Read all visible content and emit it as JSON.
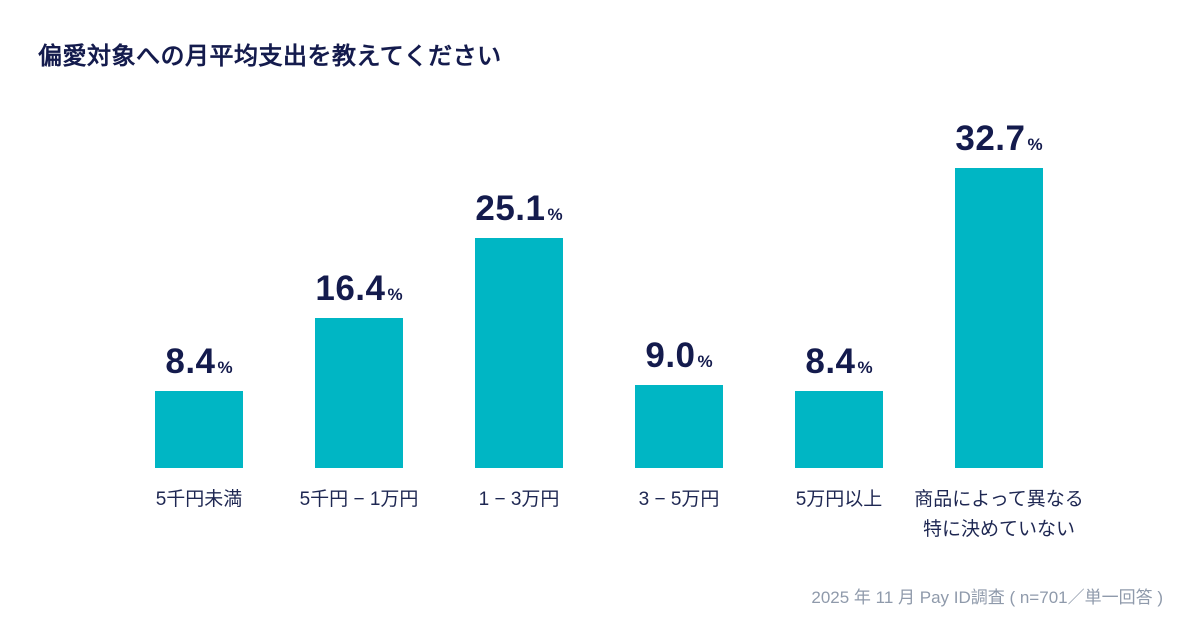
{
  "page": {
    "title": "偏愛対象への月平均支出を教えてください",
    "source_note": "2025 年 11 月 Pay ID調査 ( n=701／単一回答 )"
  },
  "colors": {
    "bar": "#00b6c4",
    "title_navy": "#141b4d",
    "label_navy": "#1e2752",
    "source_gray": "#8f9aab",
    "background": "#ffffff"
  },
  "chart_data": {
    "type": "bar",
    "title": "偏愛対象への月平均支出を教えてください",
    "categories": [
      "5千円未満",
      "5千円 − 1万円",
      "1 − 3万円",
      "3 − 5万円",
      "5万円以上",
      "商品によって異なる\n特に決めていない"
    ],
    "values": [
      8.4,
      16.4,
      25.1,
      9.0,
      8.4,
      32.7
    ],
    "unit": "%",
    "value_decimals": 1,
    "xlabel": "",
    "ylabel": "",
    "ylim": [
      0,
      35
    ],
    "grid": false,
    "legend": false,
    "axis_lines": false,
    "bar_color": "#00b6c4",
    "source": "2025 年 11 月 Pay ID調査 ( n=701／単一回答 )"
  }
}
